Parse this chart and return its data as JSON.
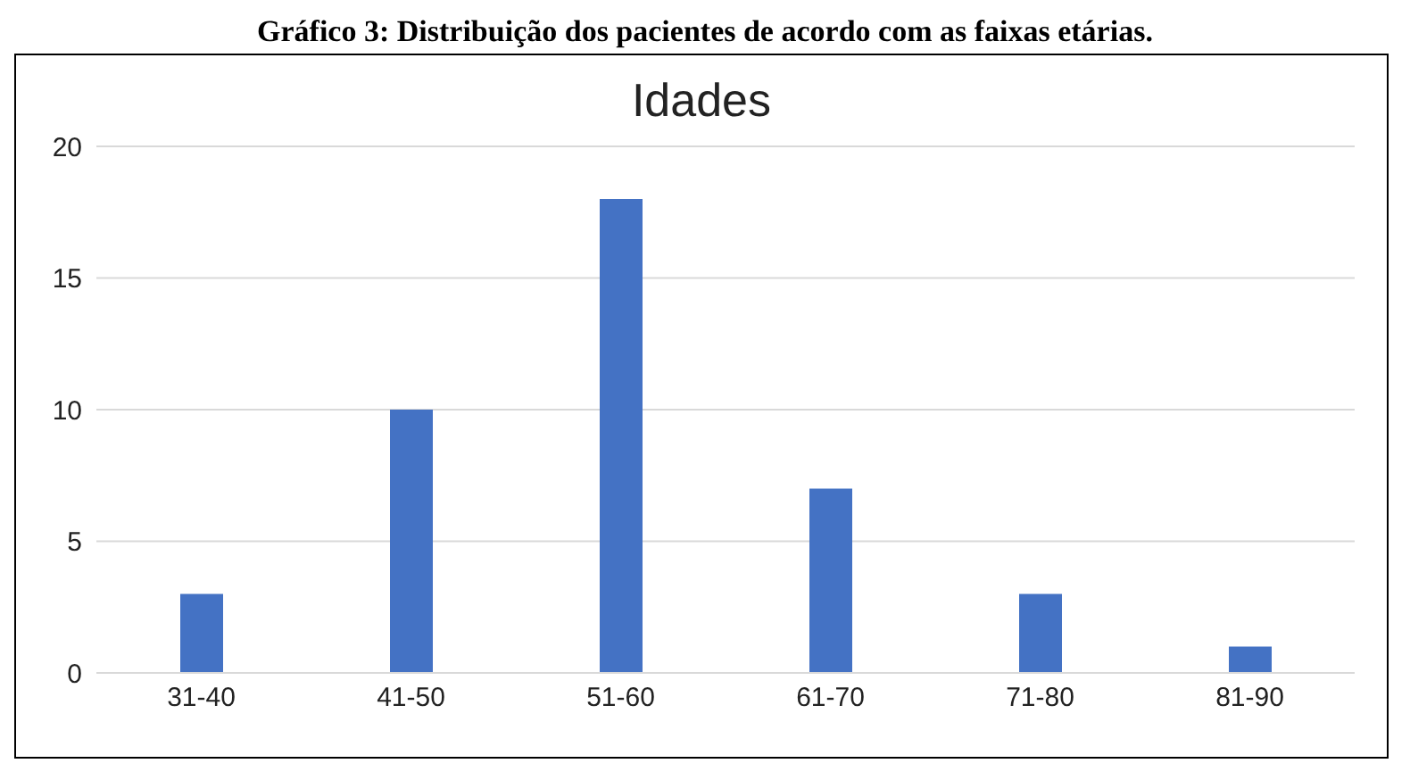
{
  "chart_data": {
    "type": "bar",
    "title": "Idades",
    "annotations": [
      "Gráfico 3: Distribuição dos pacientes de acordo com as faixas etárias."
    ],
    "categories": [
      "31-40",
      "41-50",
      "51-60",
      "61-70",
      "71-80",
      "81-90"
    ],
    "values": [
      3,
      10,
      18,
      7,
      3,
      1
    ],
    "color": "#4472c4",
    "ylim": [
      0,
      20
    ],
    "yticks": [
      0,
      5,
      10,
      15,
      20
    ],
    "grid": "y"
  }
}
